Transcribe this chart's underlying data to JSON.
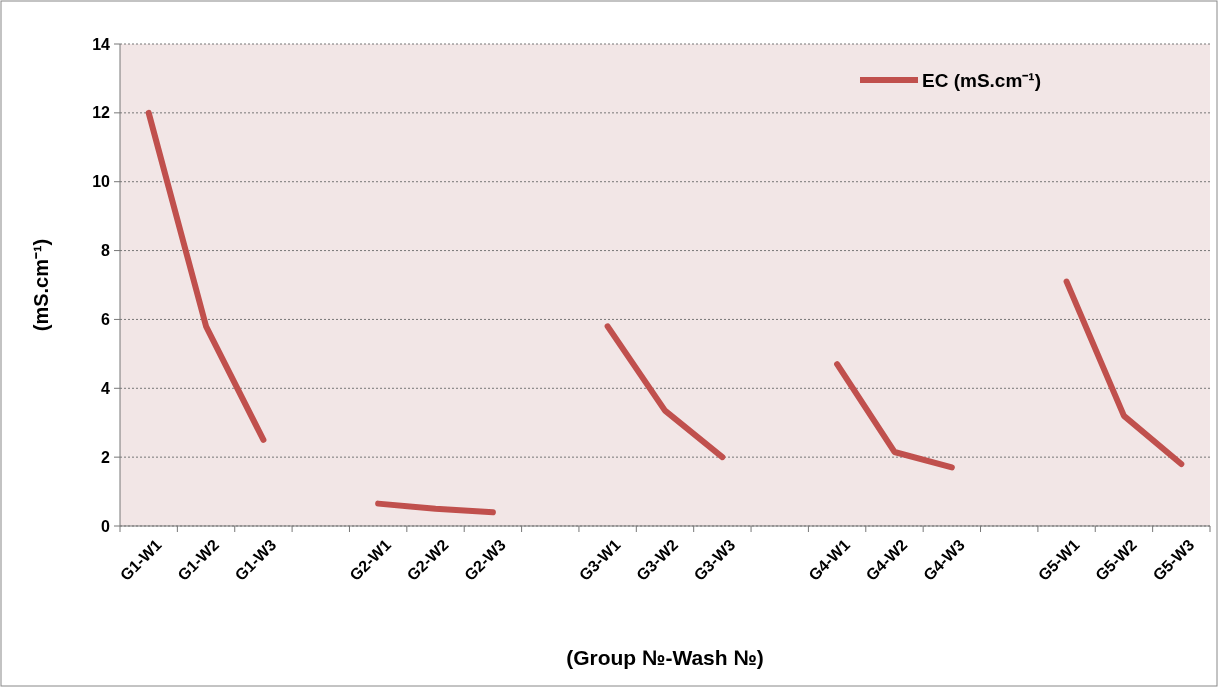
{
  "chart_data": {
    "type": "line",
    "xlabel": "(Group №-Wash №)",
    "ylabel": "(mS.cm⁻¹)",
    "categories": [
      "G1-W1",
      "G1-W2",
      "G1-W3",
      null,
      "G2-W1",
      "G2-W2",
      "G2-W3",
      null,
      "G3-W1",
      "G3-W2",
      "G3-W3",
      null,
      "G4-W1",
      "G4-W2",
      "G4-W3",
      null,
      "G5-W1",
      "G5-W2",
      "G5-W3"
    ],
    "series": [
      {
        "name": "EC (mS.cm⁻¹)",
        "color": "#c0504d",
        "values": [
          12,
          5.8,
          2.5,
          null,
          0.65,
          0.5,
          0.4,
          null,
          5.8,
          3.35,
          2.0,
          null,
          4.7,
          2.15,
          1.7,
          null,
          7.1,
          3.2,
          1.8
        ]
      }
    ],
    "ylim": [
      0,
      14
    ],
    "yticks": [
      0,
      2,
      4,
      6,
      8,
      10,
      12,
      14
    ],
    "grid": "y",
    "legend": "top right",
    "marker": "none",
    "line_style": "solid"
  }
}
